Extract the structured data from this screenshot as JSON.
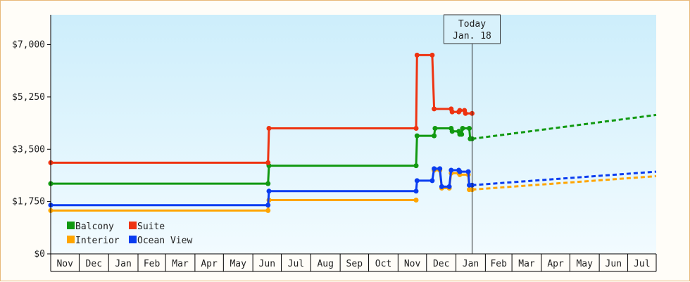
{
  "chart_data": {
    "type": "line",
    "title": "",
    "xlabel": "",
    "ylabel": "",
    "ylim": [
      0,
      8000
    ],
    "y_ticks": [
      0,
      1750,
      3500,
      5250,
      7000
    ],
    "y_tick_labels": [
      "$0",
      "$1,750",
      "$3,500",
      "$5,250",
      "$7,000"
    ],
    "x_range": [
      "2019-11-01",
      "2021-07-31"
    ],
    "x_tick_labels": [
      "Nov",
      "Dec",
      "Jan",
      "Feb",
      "Mar",
      "Apr",
      "May",
      "Jun",
      "Jul",
      "Aug",
      "Sep",
      "Oct",
      "Nov",
      "Dec",
      "Jan",
      "Feb",
      "Mar",
      "Apr",
      "May",
      "Jun",
      "Jul"
    ],
    "today": {
      "date": "2021-01-18",
      "label_line1": "Today",
      "label_line2": "Jan. 18"
    },
    "grid": false,
    "legend_position": "bottom-left",
    "series": [
      {
        "name": "Balcony",
        "color": "#119911",
        "style": "step",
        "points": [
          [
            "2019-11-01",
            2350
          ],
          [
            "2020-06-17",
            2350
          ],
          [
            "2020-06-18",
            2950
          ],
          [
            "2020-11-20",
            2950
          ],
          [
            "2020-11-21",
            3950
          ],
          [
            "2020-12-09",
            3950
          ],
          [
            "2020-12-10",
            4200
          ],
          [
            "2020-12-27",
            4200
          ],
          [
            "2020-12-28",
            4100
          ],
          [
            "2021-01-04",
            4100
          ],
          [
            "2021-01-05",
            4000
          ],
          [
            "2021-01-07",
            4000
          ],
          [
            "2021-01-08",
            4200
          ],
          [
            "2021-01-15",
            4200
          ],
          [
            "2021-01-16",
            3850
          ],
          [
            "2021-01-18",
            3850
          ]
        ],
        "projection": [
          [
            "2021-01-18",
            3850
          ],
          [
            "2021-07-31",
            4650
          ]
        ]
      },
      {
        "name": "Suite",
        "color": "#ee3311",
        "style": "step",
        "points": [
          [
            "2019-11-01",
            3050
          ],
          [
            "2020-06-17",
            3050
          ],
          [
            "2020-06-18",
            4200
          ],
          [
            "2020-11-20",
            4200
          ],
          [
            "2020-11-21",
            6650
          ],
          [
            "2020-12-07",
            6650
          ],
          [
            "2020-12-09",
            4850
          ],
          [
            "2020-12-27",
            4850
          ],
          [
            "2020-12-28",
            4750
          ],
          [
            "2021-01-04",
            4750
          ],
          [
            "2021-01-05",
            4800
          ],
          [
            "2021-01-10",
            4800
          ],
          [
            "2021-01-11",
            4700
          ],
          [
            "2021-01-18",
            4700
          ]
        ],
        "projection": []
      },
      {
        "name": "Interior",
        "color": "#ffa500",
        "style": "step",
        "points": [
          [
            "2019-11-01",
            1450
          ],
          [
            "2020-06-17",
            1450
          ],
          [
            "2020-06-18",
            1800
          ],
          [
            "2020-11-20",
            1800
          ]
        ],
        "projection": [
          [
            "2021-01-18",
            2150
          ],
          [
            "2021-07-31",
            2600
          ]
        ]
      },
      {
        "name": "Ocean View",
        "color": "#0a3cf0",
        "style": "step",
        "points": [
          [
            "2019-11-01",
            1630
          ],
          [
            "2020-06-17",
            1630
          ],
          [
            "2020-06-18",
            2100
          ],
          [
            "2020-11-20",
            2100
          ],
          [
            "2020-11-21",
            2450
          ],
          [
            "2020-12-07",
            2450
          ],
          [
            "2020-12-09",
            2850
          ],
          [
            "2020-12-15",
            2850
          ],
          [
            "2020-12-17",
            2250
          ],
          [
            "2020-12-25",
            2250
          ],
          [
            "2020-12-27",
            2800
          ],
          [
            "2021-01-04",
            2800
          ],
          [
            "2021-01-05",
            2750
          ],
          [
            "2021-01-14",
            2750
          ],
          [
            "2021-01-15",
            2300
          ],
          [
            "2021-01-18",
            2300
          ]
        ],
        "projection": [
          [
            "2021-01-18",
            2300
          ],
          [
            "2021-07-31",
            2750
          ]
        ]
      }
    ],
    "interior_late": {
      "points": [
        [
          "2020-12-09",
          2800
        ],
        [
          "2020-12-15",
          2800
        ],
        [
          "2020-12-17",
          2200
        ],
        [
          "2020-12-25",
          2200
        ],
        [
          "2020-12-27",
          2700
        ],
        [
          "2021-01-04",
          2700
        ],
        [
          "2021-01-05",
          2650
        ],
        [
          "2021-01-14",
          2650
        ],
        [
          "2021-01-15",
          2150
        ],
        [
          "2021-01-18",
          2150
        ]
      ]
    },
    "legend": [
      {
        "name": "Balcony",
        "color": "#119911"
      },
      {
        "name": "Suite",
        "color": "#ee3311"
      },
      {
        "name": "Interior",
        "color": "#ffa500"
      },
      {
        "name": "Ocean View",
        "color": "#0a3cf0"
      }
    ]
  }
}
